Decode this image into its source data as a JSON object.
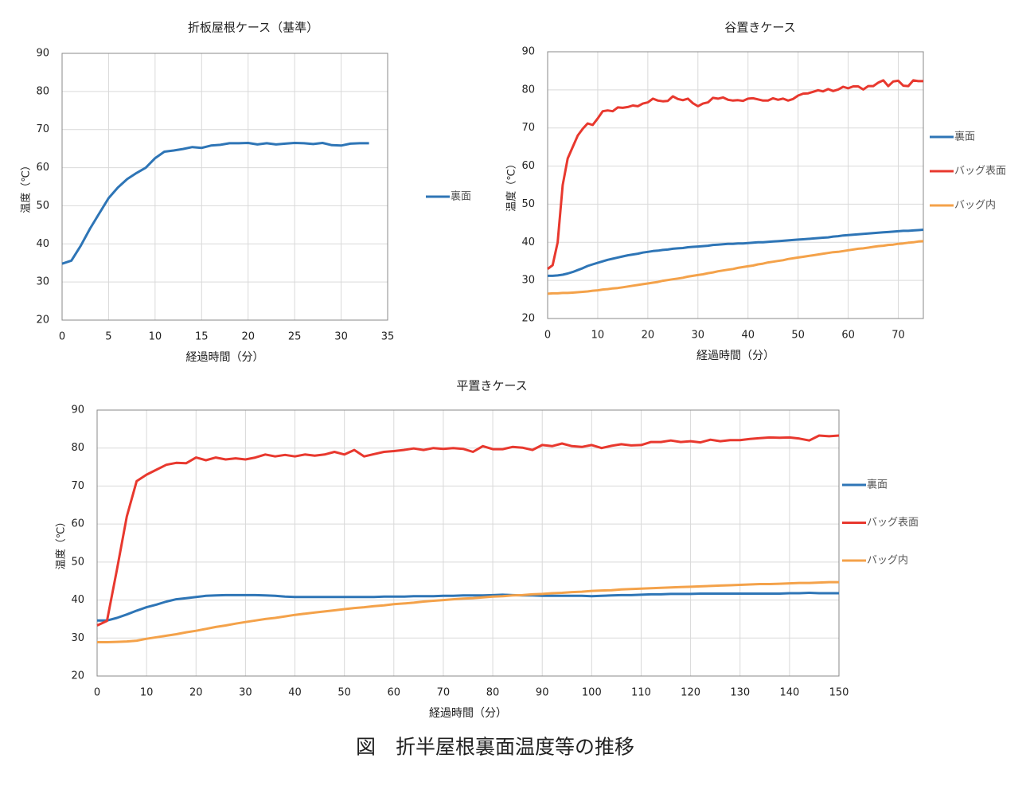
{
  "chart_data": [
    {
      "type": "line",
      "title": "折板屋根ケース（基準）",
      "xlabel": "経過時間（分）",
      "ylabel": "温度（℃）",
      "x": [
        0,
        1,
        2,
        3,
        4,
        5,
        6,
        7,
        8,
        9,
        10,
        11,
        12,
        13,
        14,
        15,
        16,
        17,
        18,
        19,
        20,
        21,
        22,
        23,
        24,
        25,
        26,
        27,
        28,
        29,
        30,
        31,
        32,
        33
      ],
      "series": [
        {
          "name": "裏面",
          "color": "#2e75b6",
          "values": [
            34.8,
            35.6,
            39.5,
            44,
            48,
            52,
            54.8,
            57,
            58.6,
            60,
            62.5,
            64.2,
            64.5,
            64.9,
            65.4,
            65.2,
            65.8,
            66,
            66.4,
            66.4,
            66.5,
            66.1,
            66.4,
            66.1,
            66.3,
            66.5,
            66.4,
            66.2,
            66.5,
            65.9,
            65.8,
            66.3,
            66.4,
            66.4
          ]
        }
      ],
      "xlim": [
        0,
        35
      ],
      "xticks": [
        0,
        5,
        10,
        15,
        20,
        25,
        30,
        35
      ],
      "ylim": [
        20,
        90
      ],
      "yticks": [
        20,
        30,
        40,
        50,
        60,
        70,
        80,
        90
      ],
      "grid": true,
      "legend": "right"
    },
    {
      "type": "line",
      "title": "谷置きケース",
      "xlabel": "経過時間（分）",
      "ylabel": "温度（℃）",
      "x": [
        0,
        1,
        2,
        3,
        4,
        5,
        6,
        7,
        8,
        9,
        10,
        11,
        12,
        13,
        14,
        15,
        16,
        17,
        18,
        19,
        20,
        21,
        22,
        23,
        24,
        25,
        26,
        27,
        28,
        29,
        30,
        31,
        32,
        33,
        34,
        35,
        36,
        37,
        38,
        39,
        40,
        41,
        42,
        43,
        44,
        45,
        46,
        47,
        48,
        49,
        50,
        51,
        52,
        53,
        54,
        55,
        56,
        57,
        58,
        59,
        60,
        61,
        62,
        63,
        64,
        65,
        66,
        67,
        68,
        69,
        70,
        71,
        72,
        73,
        74,
        75
      ],
      "series": [
        {
          "name": "裏面",
          "color": "#2e75b6",
          "values": [
            31.2,
            31.2,
            31.3,
            31.5,
            31.8,
            32.2,
            32.7,
            33.2,
            33.8,
            34.2,
            34.6,
            35,
            35.4,
            35.7,
            36,
            36.3,
            36.6,
            36.8,
            37,
            37.3,
            37.5,
            37.7,
            37.8,
            38,
            38.1,
            38.3,
            38.4,
            38.5,
            38.7,
            38.8,
            38.9,
            39,
            39.1,
            39.3,
            39.4,
            39.5,
            39.6,
            39.6,
            39.7,
            39.7,
            39.8,
            39.9,
            40,
            40,
            40.1,
            40.2,
            40.3,
            40.4,
            40.5,
            40.6,
            40.7,
            40.8,
            40.9,
            41,
            41.1,
            41.2,
            41.3,
            41.5,
            41.6,
            41.8,
            41.9,
            42,
            42.1,
            42.2,
            42.3,
            42.4,
            42.5,
            42.6,
            42.7,
            42.8,
            42.9,
            43,
            43,
            43.1,
            43.2,
            43.3
          ]
        },
        {
          "name": "バッグ表面",
          "color": "#e8382e",
          "values": [
            33,
            34,
            40,
            55,
            62,
            65,
            68,
            69.8,
            71.2,
            70.8,
            72.5,
            74.4,
            74.6,
            74.4,
            75.4,
            75.3,
            75.5,
            75.9,
            75.7,
            76.4,
            76.7,
            77.7,
            77.2,
            77,
            77.1,
            78.3,
            77.6,
            77.3,
            77.7,
            76.5,
            75.7,
            76.4,
            76.7,
            77.9,
            77.7,
            78,
            77.4,
            77.2,
            77.3,
            77.1,
            77.7,
            77.8,
            77.5,
            77.2,
            77.2,
            77.8,
            77.4,
            77.7,
            77.2,
            77.6,
            78.5,
            79,
            79.1,
            79.5,
            79.9,
            79.6,
            80.2,
            79.7,
            80.1,
            80.8,
            80.4,
            80.9,
            80.9,
            80.1,
            81,
            81,
            81.9,
            82.5,
            81,
            82.2,
            82.4,
            81.1,
            81,
            82.5,
            82.3,
            82.3
          ]
        },
        {
          "name": "バッグ内",
          "color": "#f4a24a",
          "values": [
            26.5,
            26.6,
            26.6,
            26.7,
            26.7,
            26.8,
            26.9,
            27,
            27.1,
            27.3,
            27.4,
            27.6,
            27.7,
            27.9,
            28,
            28.2,
            28.4,
            28.6,
            28.8,
            29,
            29.2,
            29.4,
            29.6,
            29.9,
            30.1,
            30.3,
            30.5,
            30.7,
            31,
            31.2,
            31.4,
            31.6,
            31.9,
            32.1,
            32.4,
            32.6,
            32.8,
            33,
            33.3,
            33.5,
            33.7,
            33.9,
            34.2,
            34.4,
            34.7,
            34.9,
            35.1,
            35.3,
            35.6,
            35.8,
            36,
            36.2,
            36.4,
            36.6,
            36.8,
            37,
            37.2,
            37.4,
            37.5,
            37.7,
            37.9,
            38.1,
            38.3,
            38.4,
            38.6,
            38.8,
            39,
            39.1,
            39.3,
            39.4,
            39.6,
            39.7,
            39.9,
            40,
            40.2,
            40.3
          ]
        }
      ],
      "xlim": [
        0,
        75
      ],
      "xticks": [
        0,
        10,
        20,
        30,
        40,
        50,
        60,
        70
      ],
      "ylim": [
        20,
        90
      ],
      "yticks": [
        20,
        30,
        40,
        50,
        60,
        70,
        80,
        90
      ],
      "grid": true,
      "legend": "right"
    },
    {
      "type": "line",
      "title": "平置きケース",
      "xlabel": "経過時間（分）",
      "ylabel": "温度（℃）",
      "x": [
        0,
        2,
        4,
        6,
        8,
        10,
        12,
        14,
        16,
        18,
        20,
        22,
        24,
        26,
        28,
        30,
        32,
        34,
        36,
        38,
        40,
        42,
        44,
        46,
        48,
        50,
        52,
        54,
        56,
        58,
        60,
        62,
        64,
        66,
        68,
        70,
        72,
        74,
        76,
        78,
        80,
        82,
        84,
        86,
        88,
        90,
        92,
        94,
        96,
        98,
        100,
        102,
        104,
        106,
        108,
        110,
        112,
        114,
        116,
        118,
        120,
        122,
        124,
        126,
        128,
        130,
        132,
        134,
        136,
        138,
        140,
        142,
        144,
        146,
        148,
        150
      ],
      "series": [
        {
          "name": "裏面",
          "color": "#2e75b6",
          "values": [
            34.6,
            34.6,
            35.3,
            36.2,
            37.2,
            38.1,
            38.8,
            39.6,
            40.2,
            40.5,
            40.8,
            41.1,
            41.2,
            41.3,
            41.3,
            41.3,
            41.3,
            41.2,
            41.1,
            40.9,
            40.8,
            40.8,
            40.8,
            40.8,
            40.8,
            40.8,
            40.8,
            40.8,
            40.8,
            40.9,
            40.9,
            40.9,
            41,
            41,
            41,
            41.1,
            41.1,
            41.2,
            41.2,
            41.2,
            41.3,
            41.4,
            41.3,
            41.2,
            41.2,
            41.1,
            41.1,
            41.1,
            41.1,
            41.1,
            41,
            41.1,
            41.2,
            41.3,
            41.3,
            41.4,
            41.5,
            41.5,
            41.6,
            41.6,
            41.6,
            41.7,
            41.7,
            41.7,
            41.7,
            41.7,
            41.7,
            41.7,
            41.7,
            41.7,
            41.8,
            41.8,
            41.9,
            41.8,
            41.8,
            41.8
          ]
        },
        {
          "name": "バッグ表面",
          "color": "#e8382e",
          "values": [
            33.3,
            34.5,
            48,
            62,
            71.3,
            73,
            74.3,
            75.6,
            76.1,
            76,
            77.5,
            76.8,
            77.5,
            77,
            77.3,
            77,
            77.5,
            78.3,
            77.8,
            78.2,
            77.8,
            78.3,
            78,
            78.3,
            79,
            78.3,
            79.5,
            77.8,
            78.4,
            79,
            79.2,
            79.5,
            79.9,
            79.5,
            80,
            79.8,
            80,
            79.8,
            79,
            80.5,
            79.7,
            79.7,
            80.3,
            80.1,
            79.5,
            80.8,
            80.5,
            81.2,
            80.5,
            80.3,
            80.8,
            80,
            80.6,
            81,
            80.7,
            80.8,
            81.6,
            81.6,
            82,
            81.6,
            81.8,
            81.5,
            82.2,
            81.8,
            82.1,
            82.1,
            82.4,
            82.6,
            82.8,
            82.7,
            82.8,
            82.5,
            82,
            83.3,
            83.1,
            83.3
          ]
        },
        {
          "name": "バッグ内",
          "color": "#f4a24a",
          "values": [
            28.9,
            28.9,
            29,
            29.1,
            29.3,
            29.8,
            30.2,
            30.6,
            31,
            31.5,
            31.9,
            32.4,
            32.9,
            33.3,
            33.8,
            34.2,
            34.6,
            35,
            35.3,
            35.7,
            36.1,
            36.4,
            36.7,
            37,
            37.3,
            37.6,
            37.9,
            38.1,
            38.4,
            38.6,
            38.9,
            39.1,
            39.3,
            39.6,
            39.8,
            40,
            40.2,
            40.4,
            40.5,
            40.7,
            40.9,
            41,
            41.2,
            41.3,
            41.5,
            41.6,
            41.8,
            41.9,
            42.1,
            42.2,
            42.4,
            42.5,
            42.6,
            42.8,
            42.9,
            43,
            43.1,
            43.2,
            43.3,
            43.4,
            43.5,
            43.6,
            43.7,
            43.8,
            43.9,
            44,
            44.1,
            44.2,
            44.2,
            44.3,
            44.4,
            44.5,
            44.5,
            44.6,
            44.7,
            44.7
          ]
        }
      ],
      "xlim": [
        0,
        150
      ],
      "xticks": [
        0,
        10,
        20,
        30,
        40,
        50,
        60,
        70,
        80,
        90,
        100,
        110,
        120,
        130,
        140,
        150
      ],
      "ylim": [
        20,
        90
      ],
      "yticks": [
        20,
        30,
        40,
        50,
        60,
        70,
        80,
        90
      ],
      "grid": true,
      "legend": "right"
    }
  ],
  "caption": "図　折半屋根裏面温度等の推移"
}
